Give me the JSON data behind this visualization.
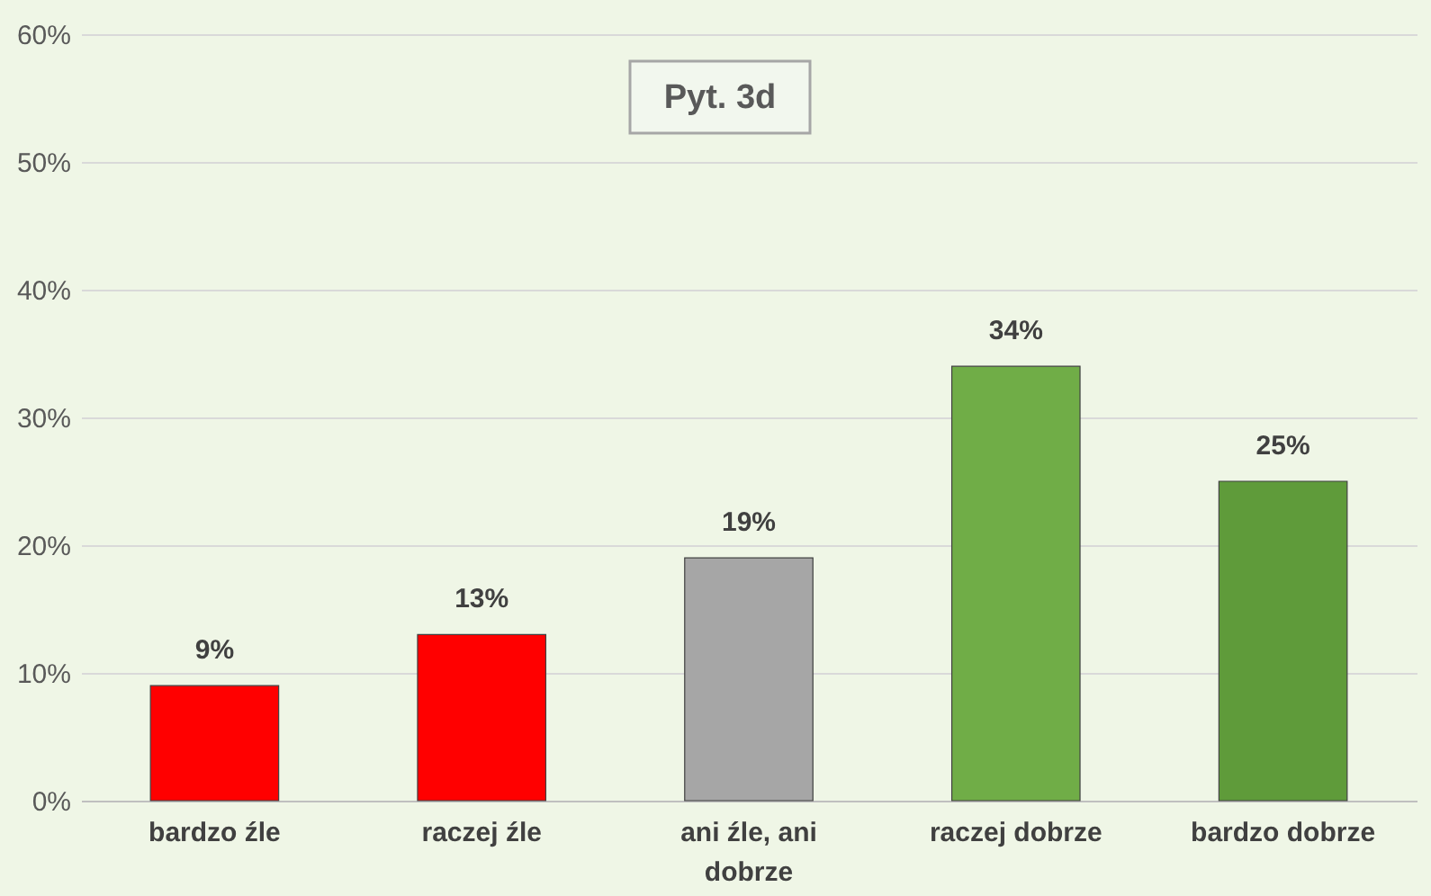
{
  "chart_data": {
    "type": "bar",
    "title": "Pyt. 3d",
    "categories": [
      "bardzo źle",
      "raczej źle",
      "ani źle, ani dobrze",
      "raczej dobrze",
      "bardzo dobrze"
    ],
    "values": [
      9,
      13,
      19,
      34,
      25
    ],
    "colors": [
      "#ff0000",
      "#ff0000",
      "#a6a6a6",
      "#70ad47",
      "#5f9b3a"
    ],
    "ylim": [
      0,
      60
    ],
    "yticks": [
      {
        "value": 0,
        "label": "0%"
      },
      {
        "value": 10,
        "label": "10%"
      },
      {
        "value": 20,
        "label": "20%"
      },
      {
        "value": 30,
        "label": "30%"
      },
      {
        "value": 40,
        "label": "40%"
      },
      {
        "value": 50,
        "label": "50%"
      },
      {
        "value": 60,
        "label": "60%"
      }
    ],
    "value_labels": [
      "9%",
      "13%",
      "19%",
      "34%",
      "25%"
    ],
    "grid": "y"
  }
}
